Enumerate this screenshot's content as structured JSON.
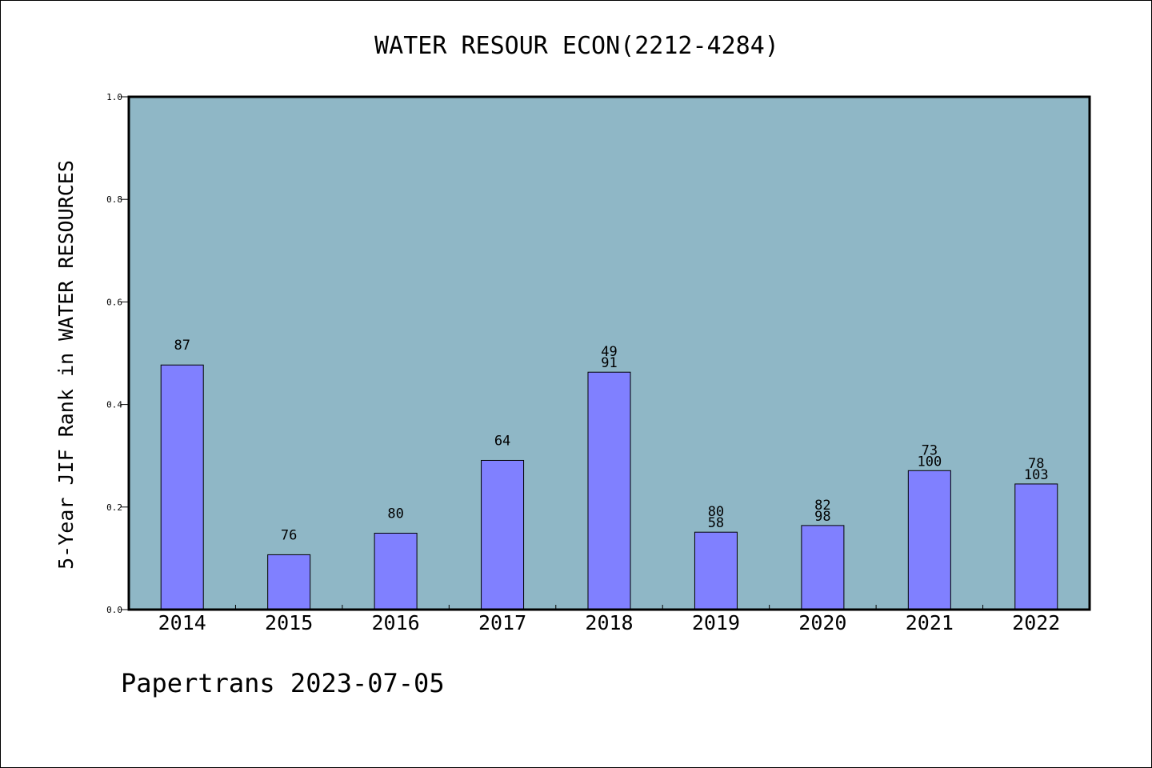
{
  "chart_data": {
    "type": "bar",
    "title": "WATER RESOUR ECON(2212-4284)",
    "xlabel": "",
    "ylabel": "5-Year JIF Rank in WATER RESOURCES",
    "categories": [
      "2014",
      "2015",
      "2016",
      "2017",
      "2018",
      "2019",
      "2020",
      "2021",
      "2022"
    ],
    "values": [
      0.477,
      0.107,
      0.149,
      0.291,
      0.463,
      0.151,
      0.164,
      0.271,
      0.245
    ],
    "bar_labels": [
      [
        "87"
      ],
      [
        "76"
      ],
      [
        "80"
      ],
      [
        "64"
      ],
      [
        "49",
        "91"
      ],
      [
        "80",
        "58"
      ],
      [
        "82",
        "98"
      ],
      [
        "73",
        "100"
      ],
      [
        "78",
        "103"
      ]
    ],
    "ylim": [
      0,
      1.0
    ],
    "yticks": [
      "0.0",
      "0.2",
      "0.4",
      "0.6",
      "0.8",
      "1.0"
    ],
    "grid": false,
    "colors": {
      "plot_background": "#8fb7c6",
      "bar_fill": "#8080ff",
      "bar_stroke": "#000000"
    }
  },
  "footer": {
    "text": "Papertrans 2023-07-05"
  }
}
